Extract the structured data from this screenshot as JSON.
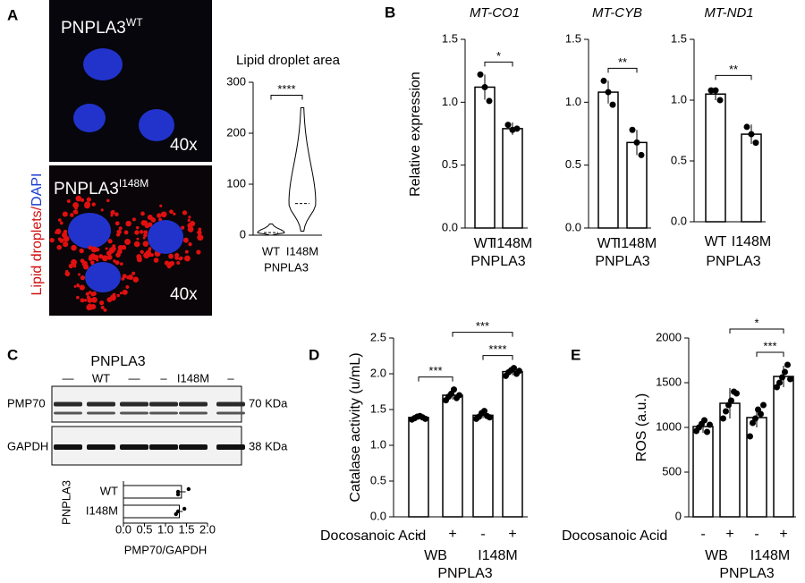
{
  "panel_labels": [
    "A",
    "B",
    "C",
    "D",
    "E"
  ],
  "images": {
    "wt": {
      "label": "PNPLA3",
      "sup": "WT",
      "mag": "40x"
    },
    "mut": {
      "label": "PNPLA3",
      "sup": "I148M",
      "mag": "40x"
    },
    "stain": [
      "Lipid droplets",
      "/",
      "DAPI"
    ]
  },
  "blot": {
    "title": "PNPLA3",
    "lanes": [
      "—",
      "WT",
      "—",
      "–",
      "I148M",
      "–"
    ],
    "bands": [
      {
        "name": "PMP70",
        "size": "70 KDa"
      },
      {
        "name": "GAPDH",
        "size": "38 KDa"
      }
    ]
  },
  "chart_data": [
    {
      "type": "violin",
      "title": "Lipid droplet area",
      "categories": [
        "WT",
        "I148M"
      ],
      "xlabel": "PNPLA3",
      "min": [
        0,
        8
      ],
      "median": [
        5,
        62
      ],
      "max": [
        22,
        250
      ],
      "ylim": [
        0,
        300
      ],
      "yticks": [
        0,
        100,
        200,
        300
      ],
      "significance": [
        {
          "from": 0,
          "to": 1,
          "label": "****"
        }
      ]
    },
    {
      "type": "bar",
      "title": "MT-CO1",
      "ylabel": "Relative expression",
      "categories": [
        "WT",
        "I148M"
      ],
      "xlabel": "PNPLA3",
      "values": [
        1.12,
        0.79
      ],
      "errors": [
        0.1,
        0.05
      ],
      "points": [
        [
          1.22,
          1.12,
          1.01
        ],
        [
          0.82,
          0.78,
          0.79
        ]
      ],
      "ylim": [
        0,
        1.5
      ],
      "yticks": [
        {
          "value": 0,
          "label": "0.0"
        },
        0.5,
        {
          "value": 1,
          "label": "1.0"
        },
        1.5
      ],
      "significance": [
        {
          "from": 0,
          "to": 1,
          "label": "*"
        }
      ]
    },
    {
      "type": "bar",
      "title": "MT-CYB",
      "categories": [
        "WT",
        "I148M"
      ],
      "xlabel": "PNPLA3",
      "values": [
        1.08,
        0.68
      ],
      "errors": [
        0.09,
        0.1
      ],
      "points": [
        [
          1.17,
          1.08,
          0.98
        ],
        [
          0.78,
          0.68,
          0.58
        ]
      ],
      "ylim": [
        0,
        1.5
      ],
      "yticks": [
        {
          "value": 0,
          "label": "0.0"
        },
        0.5,
        {
          "value": 1,
          "label": "1.0"
        },
        1.5
      ],
      "significance": [
        {
          "from": 0,
          "to": 1,
          "label": "**"
        }
      ]
    },
    {
      "type": "bar",
      "title": "MT-ND1",
      "categories": [
        "WT",
        "I148M"
      ],
      "xlabel": "PNPLA3",
      "values": [
        1.05,
        0.72
      ],
      "errors": [
        0.05,
        0.08
      ],
      "points": [
        [
          1.08,
          1.08,
          1.0
        ],
        [
          0.78,
          0.72,
          0.65
        ]
      ],
      "ylim": [
        0,
        1.5
      ],
      "yticks": [
        {
          "value": 0,
          "label": "0.0"
        },
        0.5,
        {
          "value": 1,
          "label": "1.0"
        },
        1.5
      ],
      "significance": [
        {
          "from": 0,
          "to": 1,
          "label": "**"
        }
      ]
    },
    {
      "type": "hbar",
      "categories": [
        "WT",
        "I148M"
      ],
      "ylabel": "PNPLA3",
      "xlabel": "PMP70/GAPDH",
      "values": [
        1.38,
        1.33
      ],
      "errors": [
        0.1,
        0.08
      ],
      "points": [
        [
          1.55,
          1.3,
          1.3
        ],
        [
          1.45,
          1.3,
          1.25
        ]
      ],
      "xlim": [
        0,
        2
      ],
      "xticks": [
        {
          "value": 0,
          "label": "0.0"
        },
        0.5,
        {
          "value": 1,
          "label": "1.0"
        },
        1.5,
        {
          "value": 2,
          "label": "2.0"
        }
      ]
    },
    {
      "type": "bar",
      "ylabel": "Catalase activity (u/mL)",
      "categories": [
        "-",
        "+",
        "-",
        "+"
      ],
      "groups": [
        "WB",
        "I148M"
      ],
      "treatment": "Docosanoic Acid",
      "xlabel": "PNPLA3",
      "values": [
        1.39,
        1.7,
        1.42,
        2.03
      ],
      "errors": [
        0.03,
        0.06,
        0.04,
        0.05
      ],
      "points": [
        [
          1.36,
          1.38,
          1.4,
          1.41,
          1.39,
          1.37
        ],
        [
          1.63,
          1.68,
          1.72,
          1.78,
          1.66,
          1.7
        ],
        [
          1.37,
          1.4,
          1.45,
          1.48,
          1.41,
          1.39
        ],
        [
          1.97,
          2.02,
          2.05,
          2.08,
          2.0,
          2.04
        ]
      ],
      "ylim": [
        0,
        2.5
      ],
      "yticks": [
        {
          "value": 0,
          "label": "0.0"
        },
        0.5,
        {
          "value": 1,
          "label": "1.0"
        },
        1.5,
        {
          "value": 2,
          "label": "2.0"
        },
        2.5
      ],
      "significance": [
        {
          "from": 0,
          "to": 1,
          "label": "***"
        },
        {
          "from": 2,
          "to": 3,
          "label": "****"
        },
        {
          "from": 1,
          "to": 3,
          "label": "***"
        }
      ]
    },
    {
      "type": "bar",
      "ylabel": "ROS (a.u.)",
      "categories": [
        "-",
        "+",
        "-",
        "+"
      ],
      "groups": [
        "WB",
        "I148M"
      ],
      "treatment": "Docosanoic Acid",
      "xlabel": "PNPLA3",
      "values": [
        1010,
        1270,
        1110,
        1570
      ],
      "errors": [
        70,
        170,
        110,
        120
      ],
      "points": [
        [
          960,
          1000,
          1040,
          1080,
          950,
          1030
        ],
        [
          1100,
          1180,
          1250,
          1300,
          1400,
          1380
        ],
        [
          900,
          1050,
          1100,
          1200,
          1150,
          1250
        ],
        [
          1450,
          1500,
          1560,
          1620,
          1700,
          1540
        ]
      ],
      "ylim": [
        0,
        2000
      ],
      "yticks": [
        0,
        500,
        1000,
        1500,
        2000
      ],
      "significance": [
        {
          "from": 2,
          "to": 3,
          "label": "***"
        },
        {
          "from": 1,
          "to": 3,
          "label": "*"
        }
      ]
    }
  ]
}
